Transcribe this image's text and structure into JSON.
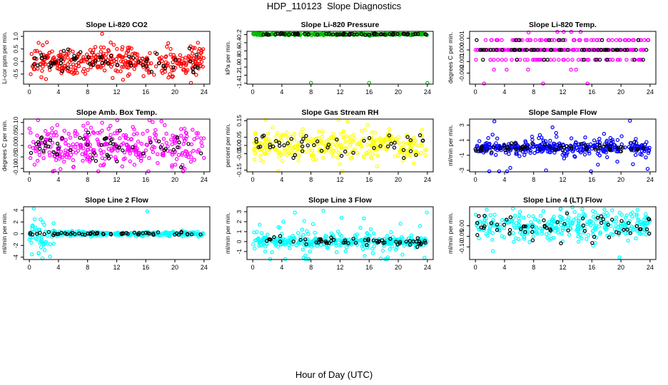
{
  "figure": {
    "title": "HDP_110123  Slope Diagnostics",
    "xlabel": "Hour of Day (UTC)"
  },
  "chart_data": [
    {
      "type": "scatter",
      "title": "Slope Li-820 CO2",
      "ylabel": "Li-cor ppm per min.",
      "color": "#ff0000",
      "xlim": [
        -0.8,
        24.8
      ],
      "ylim": [
        -0.9,
        1.2
      ],
      "xticks": [
        "0",
        "4",
        "8",
        "12",
        "16",
        "20",
        "24"
      ],
      "yticks": [
        {
          "v": -0.5,
          "label": "-0.5"
        },
        {
          "v": 0.0,
          "label": "0.0"
        },
        {
          "v": 0.5,
          "label": "0.5"
        },
        {
          "v": 1.0,
          "label": "1.0"
        }
      ],
      "gen": {
        "center": 0.0,
        "spread": 0.28,
        "n": 360,
        "blackN": 60,
        "outliers": [
          {
            "x": 10.0,
            "y": 1.1
          },
          {
            "x": 22.2,
            "y": -0.85
          },
          {
            "x": 22.5,
            "y": 0.55
          }
        ]
      }
    },
    {
      "type": "scatter",
      "title": "Slope Li-820 Pressure",
      "ylabel": "kPa per min.",
      "color": "#00bb00",
      "xlim": [
        -0.8,
        24.8
      ],
      "ylim": [
        -1.42,
        -0.12
      ],
      "xticks": [
        "0",
        "4",
        "8",
        "12",
        "16",
        "20",
        "24"
      ],
      "yticks": [
        {
          "v": -0.2,
          "label": "-0.2"
        },
        {
          "v": -0.4,
          "label": "-0.4"
        },
        {
          "v": -0.6,
          "label": "-0.6"
        },
        {
          "v": -0.8,
          "label": "-0.8"
        },
        {
          "v": -1.0,
          "label": "-1.0"
        },
        {
          "v": -1.2,
          "label": "-1.2"
        },
        {
          "v": -1.4,
          "label": "-1.4"
        }
      ],
      "gen": {
        "center": -0.19,
        "spread": 0.012,
        "n": 260,
        "blackN": 70,
        "outliers": [
          {
            "x": 8.0,
            "y": -1.39
          },
          {
            "x": 16.0,
            "y": -1.39
          },
          {
            "x": 24.0,
            "y": -1.39
          }
        ]
      }
    },
    {
      "type": "scatter",
      "title": "Slope Li-820 Temp.",
      "ylabel": "degrees C per min.",
      "color": "#ff00ff",
      "xlim": [
        -0.8,
        24.8
      ],
      "ylim": [
        -0.00295,
        0.0016
      ],
      "xticks": [
        "0",
        "4",
        "8",
        "12",
        "16",
        "20",
        "24"
      ],
      "yticks": [
        {
          "v": 0.001,
          "label": "0.001"
        },
        {
          "v": 0.0,
          "label": "0.000"
        },
        {
          "v": -0.001,
          "label": "-0.001"
        },
        {
          "v": -0.002,
          "label": "-0.002"
        }
      ],
      "gen": {
        "center": 0.0,
        "spread": 0.0006,
        "n": 300,
        "blackN": 70,
        "quantize": 0.00085,
        "outliers": [
          {
            "x": 7.3,
            "y": 0.0015
          },
          {
            "x": 1.2,
            "y": -0.0029
          },
          {
            "x": 15.4,
            "y": -0.0029
          },
          {
            "x": 9.3,
            "y": -0.0029
          }
        ]
      }
    },
    {
      "type": "scatter",
      "title": "Slope Amb. Box Temp.",
      "ylabel": "degrees C per min.",
      "color": "#ff00ff",
      "xlim": [
        -0.8,
        24.8
      ],
      "ylim": [
        -0.115,
        0.115
      ],
      "xticks": [
        "0",
        "4",
        "8",
        "12",
        "16",
        "20",
        "24"
      ],
      "yticks": [
        {
          "v": -0.1,
          "label": "-0.10"
        },
        {
          "v": -0.05,
          "label": "-0.05"
        },
        {
          "v": 0.0,
          "label": "0.00"
        },
        {
          "v": 0.05,
          "label": "0.05"
        },
        {
          "v": 0.1,
          "label": "0.10"
        }
      ],
      "gen": {
        "center": 0.0,
        "spread": 0.045,
        "n": 330,
        "blackN": 55,
        "outliers": [
          {
            "x": 1.2,
            "y": 0.11
          },
          {
            "x": 16.5,
            "y": 0.11
          }
        ]
      }
    },
    {
      "type": "scatter",
      "title": "Slope Gas Stream RH",
      "ylabel": "percent per min.",
      "color": "#ffff00",
      "xlim": [
        -0.8,
        24.8
      ],
      "ylim": [
        -0.16,
        0.16
      ],
      "xticks": [
        "0",
        "4",
        "8",
        "12",
        "16",
        "20",
        "24"
      ],
      "yticks": [
        {
          "v": -0.15,
          "label": "-0.15"
        },
        {
          "v": -0.05,
          "label": "-0.05"
        },
        {
          "v": 0.0,
          "label": "0.00"
        },
        {
          "v": 0.05,
          "label": "0.05"
        },
        {
          "v": 0.15,
          "label": "0.15"
        }
      ],
      "gen": {
        "center": 0.0,
        "spread": 0.05,
        "n": 330,
        "blackN": 50,
        "outliers": [
          {
            "x": 1.8,
            "y": 0.155
          },
          {
            "x": 3.5,
            "y": -0.155
          }
        ]
      }
    },
    {
      "type": "scatter",
      "title": "Slope Sample Flow",
      "ylabel": "ml/min per min.",
      "color": "#0000ff",
      "xlim": [
        -0.8,
        24.8
      ],
      "ylim": [
        -3.2,
        3.8
      ],
      "xticks": [
        "0",
        "4",
        "8",
        "12",
        "16",
        "20",
        "24"
      ],
      "yticks": [
        {
          "v": -3,
          "label": "-3"
        },
        {
          "v": -1,
          "label": "-1"
        },
        {
          "v": 1,
          "label": "1"
        },
        {
          "v": 3,
          "label": "3"
        }
      ],
      "gen": {
        "center": 0.0,
        "spread": 0.35,
        "n": 380,
        "blackN": 60,
        "spikes": 0.25,
        "spikeSpread": 1.3,
        "outliers": [
          {
            "x": 2.6,
            "y": 3.5
          },
          {
            "x": 10.6,
            "y": 2.7
          },
          {
            "x": 9.7,
            "y": -3.0
          }
        ]
      }
    },
    {
      "type": "scatter",
      "title": "Slope Line 2 Flow",
      "ylabel": "ml/min per min.",
      "color": "#00ffff",
      "xlim": [
        -0.8,
        24.8
      ],
      "ylim": [
        -4.4,
        4.6
      ],
      "xticks": [
        "0",
        "4",
        "8",
        "12",
        "16",
        "20",
        "24"
      ],
      "yticks": [
        {
          "v": -4,
          "label": "-4"
        },
        {
          "v": -2,
          "label": "-2"
        },
        {
          "v": 0,
          "label": "0"
        },
        {
          "v": 2,
          "label": "2"
        },
        {
          "v": 4,
          "label": "4"
        }
      ],
      "gen": {
        "center": 0.0,
        "spread": 0.18,
        "n": 330,
        "blackN": 60,
        "earlyNoise": 3,
        "outliers": [
          {
            "x": 0.6,
            "y": 4.3
          },
          {
            "x": 16.2,
            "y": 3.8
          },
          {
            "x": 1.8,
            "y": -4.2
          },
          {
            "x": 2.1,
            "y": -2.8
          }
        ]
      }
    },
    {
      "type": "scatter",
      "title": "Slope Line 3 Flow",
      "ylabel": "ml/min per min.",
      "color": "#00ffff",
      "xlim": [
        -0.8,
        24.8
      ],
      "ylim": [
        -1.8,
        3.5
      ],
      "xticks": [
        "0",
        "4",
        "8",
        "12",
        "16",
        "20",
        "24"
      ],
      "yticks": [
        {
          "v": -1,
          "label": "-1"
        },
        {
          "v": 0,
          "label": "0"
        },
        {
          "v": 1,
          "label": "1"
        },
        {
          "v": 2,
          "label": "2"
        },
        {
          "v": 3,
          "label": "3"
        }
      ],
      "gen": {
        "center": 0.0,
        "spread": 0.25,
        "n": 370,
        "blackN": 60,
        "spikes": 0.2,
        "spikeSpread": 1.2,
        "outliers": [
          {
            "x": 9.7,
            "y": 3.1
          },
          {
            "x": 12.2,
            "y": 2.4
          },
          {
            "x": 17.6,
            "y": -1.7
          }
        ]
      }
    },
    {
      "type": "scatter",
      "title": "Slope Line 4 (LT) Flow",
      "ylabel": "ml/min per min.",
      "color": "#00ffff",
      "xlim": [
        -0.8,
        24.8
      ],
      "ylim": [
        -0.16,
        0.09
      ],
      "xticks": [
        "0",
        "4",
        "8",
        "12",
        "16",
        "20",
        "24"
      ],
      "yticks": [
        {
          "v": -0.1,
          "label": "-0.10"
        },
        {
          "v": -0.05,
          "label": "-0.05"
        },
        {
          "v": 0.0,
          "label": "0.00"
        }
      ],
      "gen": {
        "center": 0.0,
        "spread": 0.035,
        "n": 330,
        "blackN": 60,
        "outliers": [
          {
            "x": 19.8,
            "y": -0.15
          },
          {
            "x": 2.4,
            "y": -0.12
          }
        ]
      }
    }
  ]
}
